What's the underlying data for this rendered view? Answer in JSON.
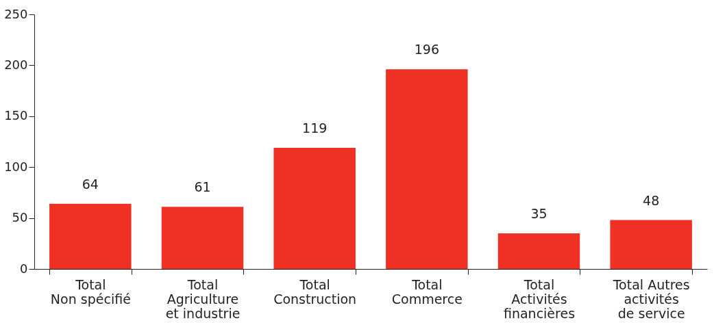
{
  "chart_data": {
    "type": "bar",
    "categories": [
      "Total\nNon spécifié",
      "Total\nAgriculture\net industrie",
      "Total\nConstruction",
      "Total\nCommerce",
      "Total\nActivités\nfinancières",
      "Total Autres\nactivités\nde service"
    ],
    "values": [
      64,
      61,
      119,
      196,
      35,
      48
    ],
    "color": "#ee3124",
    "ylim": [
      0,
      250
    ],
    "yticks": [
      0,
      50,
      100,
      150,
      200,
      250
    ],
    "data_labels": true
  }
}
